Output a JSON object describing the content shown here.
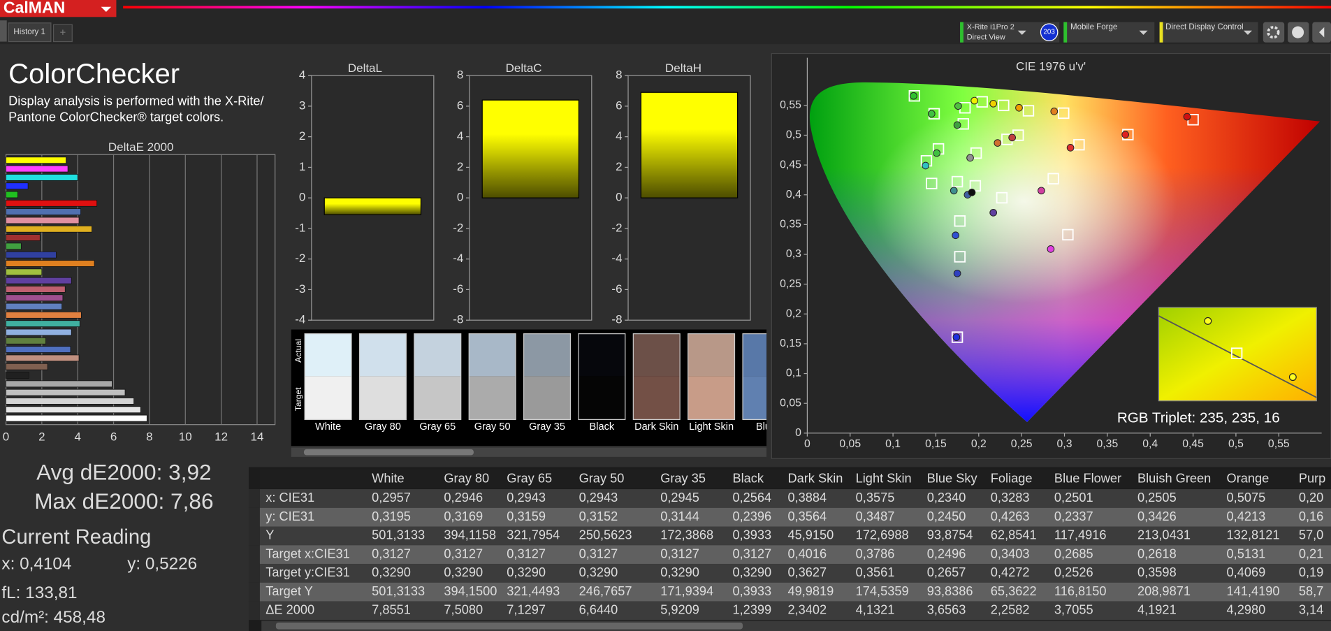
{
  "app": {
    "logo": "CalMAN",
    "tab": "History 1",
    "meter": [
      "X-Rite i1Pro 2",
      "Direct View"
    ],
    "meter_badge": "203",
    "source": "Mobile Forge",
    "display": "Direct Display Control"
  },
  "panel": {
    "title": "ColorChecker",
    "description": [
      "Display analysis is performed with the X-Rite/",
      "Pantone ColorChecker® target colors."
    ]
  },
  "stats": {
    "avg": "Avg dE2000: 3,92",
    "max": "Max dE2000: 7,86",
    "current_title": "Current Reading",
    "x": "x: 0,4104",
    "y": "y: 0,5226",
    "fl": "fL: 133,81",
    "cdm2": "cd/m²: 458,48"
  },
  "chart_data": [
    {
      "type": "bar",
      "orientation": "horizontal",
      "title": "DeltaE 2000",
      "values": [
        3.35,
        3.45,
        4.0,
        1.23,
        0.66,
        5.07,
        4.17,
        4.07,
        4.79,
        1.9,
        0.85,
        2.8,
        4.93,
        2.0,
        3.65,
        3.3,
        3.17,
        3.12,
        4.2,
        4.12,
        3.65,
        2.22,
        3.6,
        4.07,
        2.32,
        1.28,
        5.92,
        6.64,
        7.13,
        7.51,
        7.86
      ],
      "colors": [
        "#ffff00",
        "#ff40ff",
        "#20e0e0",
        "#2030ff",
        "#20c020",
        "#e01010",
        "#5070b0",
        "#e090a0",
        "#e0b020",
        "#a03030",
        "#40a040",
        "#3040a0",
        "#e08020",
        "#a0c040",
        "#6040a0",
        "#c06070",
        "#a05090",
        "#6080c0",
        "#e08040",
        "#40b0a0",
        "#90b0e0",
        "#608040",
        "#5070c0",
        "#c09080",
        "#806050",
        "#202020",
        "#a8a8a8",
        "#c0c0c0",
        "#d4d4d4",
        "#e6e6e6",
        "#ffffff"
      ],
      "xlim": [
        0,
        15
      ],
      "xticks": [
        0,
        2,
        4,
        6,
        8,
        10,
        12,
        14
      ],
      "grid": true
    },
    {
      "type": "bar",
      "title": "DeltaL",
      "values": [
        -0.55
      ],
      "color": "#ffff00",
      "ylim": [
        -4,
        4
      ],
      "yticks": [
        -4,
        -3,
        -2,
        -1,
        0,
        1,
        2,
        3,
        4
      ],
      "grid": false
    },
    {
      "type": "bar",
      "title": "DeltaC",
      "values": [
        6.4
      ],
      "color": "#ffff00",
      "ylim": [
        -8,
        8
      ],
      "yticks": [
        -8,
        -6,
        -4,
        -2,
        0,
        2,
        4,
        6,
        8
      ],
      "grid": false
    },
    {
      "type": "bar",
      "title": "DeltaH",
      "values": [
        6.9
      ],
      "color": "#ffff00",
      "ylim": [
        -8,
        8
      ],
      "yticks": [
        -8,
        -6,
        -4,
        -2,
        0,
        2,
        4,
        6,
        8
      ],
      "grid": false
    },
    {
      "type": "scatter",
      "title": "CIE 1976 u'v'",
      "xlim": [
        0,
        0.6
      ],
      "ylim": [
        0,
        0.63
      ],
      "grid": false,
      "xticks": [
        0,
        {
          "value": 0.05,
          "label": "0,05"
        },
        {
          "value": 0.1,
          "label": "0,1"
        },
        {
          "value": 0.15,
          "label": "0,15"
        },
        {
          "value": 0.2,
          "label": "0,2"
        },
        {
          "value": 0.25,
          "label": "0,25"
        },
        {
          "value": 0.3,
          "label": "0,3"
        },
        {
          "value": 0.35,
          "label": "0,35"
        },
        {
          "value": 0.4,
          "label": "0,4"
        },
        {
          "value": 0.45,
          "label": "0,45"
        },
        {
          "value": 0.5,
          "label": "0,5"
        },
        {
          "value": 0.55,
          "label": "0,55"
        }
      ],
      "yticks": [
        0,
        {
          "value": 0.05,
          "label": "0,05"
        },
        {
          "value": 0.1,
          "label": "0,1"
        },
        {
          "value": 0.15,
          "label": "0,15"
        },
        {
          "value": 0.2,
          "label": "0,2"
        },
        {
          "value": 0.25,
          "label": "0,25"
        },
        {
          "value": 0.3,
          "label": "0,3"
        },
        {
          "value": 0.35,
          "label": "0,35"
        },
        {
          "value": 0.4,
          "label": "0,4"
        },
        {
          "value": 0.45,
          "label": "0,45"
        },
        {
          "value": 0.5,
          "label": "0,5"
        },
        {
          "value": 0.55,
          "label": "0,55"
        }
      ],
      "series": [
        {
          "marker": "square",
          "color": "#ffffff",
          "x": [
            0.125,
            0.148,
            0.184,
            0.182,
            0.204,
            0.229,
            0.258,
            0.299,
            0.374,
            0.45,
            0.317,
            0.246,
            0.233,
            0.197,
            0.153,
            0.139,
            0.145,
            0.175,
            0.196,
            0.227,
            0.287,
            0.178,
            0.178,
            0.304,
            0.175
          ],
          "values": [
            0.566,
            0.536,
            0.546,
            0.519,
            0.556,
            0.55,
            0.541,
            0.537,
            0.501,
            0.526,
            0.484,
            0.5,
            0.493,
            0.47,
            0.477,
            0.457,
            0.419,
            0.422,
            0.415,
            0.395,
            0.427,
            0.356,
            0.296,
            0.333,
            0.161
          ]
        },
        {
          "marker": "circle",
          "colors": [
            "#30c030",
            "#40c040",
            "#50c040",
            "#40a040",
            "#f0f000",
            "#f0d000",
            "#f0a000",
            "#e08020",
            "#e02020",
            "#d01010",
            "#e03030",
            "#c04040",
            "#d07030",
            "#909090",
            "#40c040",
            "#30c0c0",
            "#409090",
            "#4060a0",
            "#101010",
            "#6040a0",
            "#d040a0",
            "#3050d0",
            "#3040c0",
            "#e040e0",
            "#2030e0"
          ],
          "x": [
            0.124,
            0.145,
            0.176,
            0.175,
            0.195,
            0.217,
            0.247,
            0.288,
            0.371,
            0.443,
            0.307,
            0.239,
            0.222,
            0.19,
            0.151,
            0.138,
            0.171,
            0.187,
            0.192,
            0.217,
            0.273,
            0.173,
            0.175,
            0.284,
            0.174
          ],
          "values": [
            0.566,
            0.536,
            0.549,
            0.517,
            0.558,
            0.553,
            0.546,
            0.54,
            0.501,
            0.531,
            0.479,
            0.496,
            0.487,
            0.462,
            0.47,
            0.449,
            0.407,
            0.4,
            0.404,
            0.37,
            0.407,
            0.332,
            0.268,
            0.309,
            0.161
          ]
        }
      ]
    }
  ],
  "inset": {
    "label": "RGB Triplet: 235, 235, 16"
  },
  "swatches": {
    "actual_label": "Actual",
    "target_label": "Target",
    "names": [
      "White",
      "Gray 80",
      "Gray 65",
      "Gray 50",
      "Gray 35",
      "Black",
      "Dark Skin",
      "Light Skin",
      "Blue"
    ],
    "actual_colors": [
      "#dff0f8",
      "#d0e0ec",
      "#c4d2de",
      "#a8b8c8",
      "#8c98a4",
      "#06070c",
      "#6c5048",
      "#b89888",
      "#5878a8"
    ],
    "target_colors": [
      "#f0f0f0",
      "#dedede",
      "#c6c6c6",
      "#ababab",
      "#9a9a9a",
      "#050505",
      "#735046",
      "#c89c88",
      "#6080b0"
    ]
  },
  "table": {
    "columns": [
      "White",
      "Gray 80",
      "Gray 65",
      "Gray 50",
      "Gray 35",
      "Black",
      "Dark Skin",
      "Light Skin",
      "Blue Sky",
      "Foliage",
      "Blue Flower",
      "Bluish Green",
      "Orange",
      "Purp"
    ],
    "rows": [
      {
        "label": "x: CIE31",
        "cells": [
          "0,2957",
          "0,2946",
          "0,2943",
          "0,2943",
          "0,2945",
          "0,2564",
          "0,3884",
          "0,3575",
          "0,2340",
          "0,3283",
          "0,2501",
          "0,2505",
          "0,5075",
          "0,20"
        ]
      },
      {
        "label": "y: CIE31",
        "cells": [
          "0,3195",
          "0,3169",
          "0,3159",
          "0,3152",
          "0,3144",
          "0,2396",
          "0,3564",
          "0,3487",
          "0,2450",
          "0,4263",
          "0,2337",
          "0,3426",
          "0,4213",
          "0,16"
        ]
      },
      {
        "label": "Y",
        "cells": [
          "501,3133",
          "394,1158",
          "321,7954",
          "250,5623",
          "172,3868",
          "0,3933",
          "45,9150",
          "172,6988",
          "93,8754",
          "62,8541",
          "117,4916",
          "213,0431",
          "132,8121",
          "57,0"
        ]
      },
      {
        "label": "Target x:CIE31",
        "cells": [
          "0,3127",
          "0,3127",
          "0,3127",
          "0,3127",
          "0,3127",
          "0,3127",
          "0,4016",
          "0,3786",
          "0,2496",
          "0,3403",
          "0,2685",
          "0,2618",
          "0,5131",
          "0,21"
        ]
      },
      {
        "label": "Target y:CIE31",
        "cells": [
          "0,3290",
          "0,3290",
          "0,3290",
          "0,3290",
          "0,3290",
          "0,3290",
          "0,3627",
          "0,3561",
          "0,2657",
          "0,4272",
          "0,2526",
          "0,3598",
          "0,4069",
          "0,19"
        ]
      },
      {
        "label": "Target Y",
        "cells": [
          "501,3133",
          "394,1500",
          "321,4493",
          "246,7657",
          "171,9394",
          "0,3933",
          "49,9819",
          "174,5359",
          "93,8386",
          "65,3622",
          "116,8150",
          "208,9871",
          "141,4190",
          "58,7"
        ]
      },
      {
        "label": "ΔE 2000",
        "cells": [
          "7,8551",
          "7,5080",
          "7,1297",
          "6,6440",
          "5,9209",
          "1,2399",
          "2,3402",
          "4,1321",
          "3,6563",
          "2,2582",
          "3,7055",
          "4,1921",
          "4,2980",
          "3,14"
        ]
      }
    ]
  }
}
